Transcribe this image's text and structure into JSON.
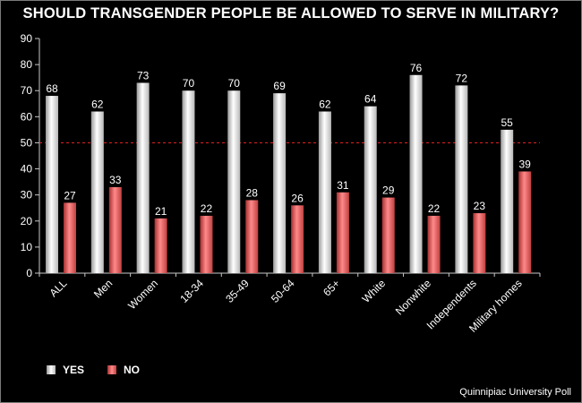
{
  "chart_data": {
    "type": "bar",
    "title": "SHOULD TRANSGENDER PEOPLE BE ALLOWED TO SERVE IN MILITARY?",
    "categories": [
      "ALL",
      "Men",
      "Women",
      "18-34",
      "35-49",
      "50-64",
      "65+",
      "White",
      "Nonwhite",
      "Independents",
      "Military homes"
    ],
    "series": [
      {
        "name": "YES",
        "values": [
          68,
          62,
          73,
          70,
          70,
          69,
          62,
          64,
          76,
          72,
          55
        ],
        "color": "#e8e8e8"
      },
      {
        "name": "NO",
        "values": [
          27,
          33,
          21,
          22,
          28,
          26,
          31,
          29,
          22,
          23,
          39
        ],
        "color": "#e85a5a"
      }
    ],
    "ylim": [
      0,
      90
    ],
    "yticks": [
      0,
      10,
      20,
      30,
      40,
      50,
      60,
      70,
      80,
      90
    ],
    "reference_line": {
      "value": 50,
      "label": "50",
      "color": "#e02020"
    },
    "xlabel": "",
    "ylabel": "",
    "legend_position": "bottom-left"
  },
  "source": "Quinnipiac University Poll",
  "colors": {
    "background": "#000000",
    "text": "#ffffff",
    "axis": "#c8c8c8"
  }
}
